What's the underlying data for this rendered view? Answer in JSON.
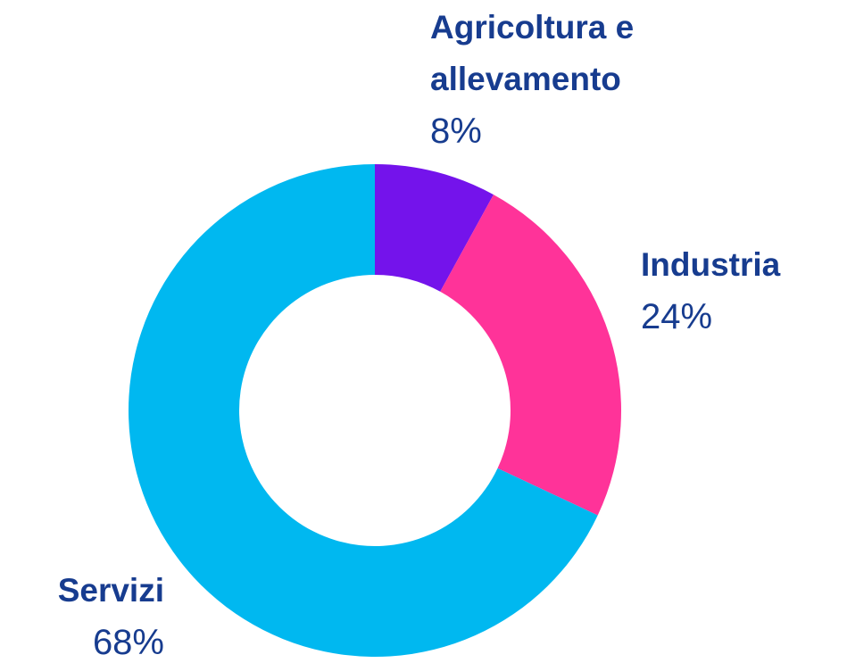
{
  "chart_data": {
    "type": "donut",
    "categories": [
      "Agricoltura e allevamento",
      "Industria",
      "Servizi"
    ],
    "values": [
      8,
      24,
      68
    ],
    "value_labels": [
      "8%",
      "24%",
      "68%"
    ],
    "colors": [
      "#7413eb",
      "#ff3399",
      "#00b8f0"
    ]
  }
}
